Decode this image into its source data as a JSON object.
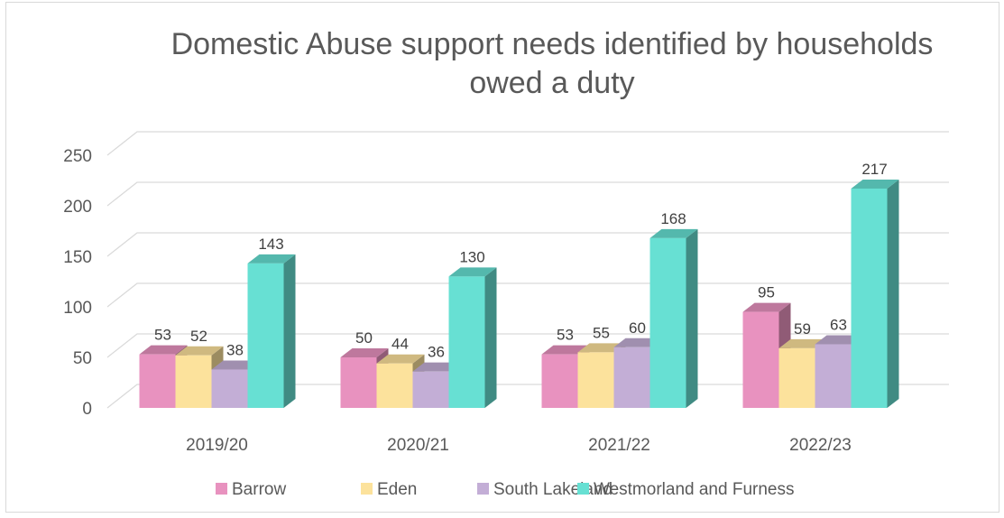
{
  "chart_data": {
    "type": "bar",
    "title": "Domestic Abuse support needs identified by households owed a duty",
    "title_lines": [
      "Domestic Abuse support needs identified by households",
      "owed a duty"
    ],
    "categories": [
      "2019/20",
      "2020/21",
      "2021/22",
      "2022/23"
    ],
    "series": [
      {
        "name": "Barrow",
        "values": [
          53,
          50,
          53,
          95
        ],
        "color": "#E892BF"
      },
      {
        "name": "Eden",
        "values": [
          52,
          44,
          55,
          59
        ],
        "color": "#FCE29C"
      },
      {
        "name": "South Lakeland",
        "values": [
          38,
          36,
          60,
          63
        ],
        "color": "#C3AED6"
      },
      {
        "name": "Westmorland and Furness",
        "values": [
          143,
          130,
          168,
          217
        ],
        "color": "#67E0D3"
      }
    ],
    "ylim": [
      0,
      250
    ],
    "yticks": [
      0,
      50,
      100,
      150,
      200,
      250
    ],
    "xlabel": "",
    "ylabel": "",
    "grid": true,
    "legend_position": "bottom",
    "style": "3d-clustered-column"
  }
}
